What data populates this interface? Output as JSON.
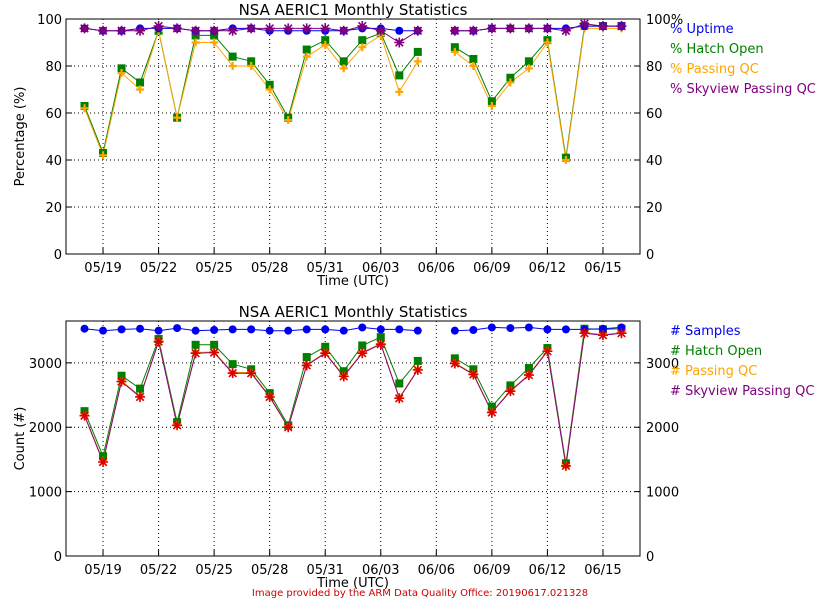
{
  "footer": "Image provided by the ARM Data Quality Office: 20190617.021328",
  "colors": {
    "blue": "#0000ee",
    "green": "#008000",
    "orange": "#ffa500",
    "purple": "#800080",
    "red": "#dd0000",
    "text": "#000000"
  },
  "chart_data": [
    {
      "type": "line",
      "title": "NSA AERIC1 Monthly Statistics",
      "xlabel": "Time (UTC)",
      "ylabel": "Percentage (%)",
      "ylim": [
        0,
        100
      ],
      "yticks": [
        0,
        20,
        40,
        60,
        80,
        100
      ],
      "yticks_right": [
        "0",
        "20",
        "40",
        "60",
        "80",
        "100%"
      ],
      "xlim": [
        17,
        48
      ],
      "xtick_positions": [
        19,
        22,
        25,
        28,
        31,
        34,
        37,
        40,
        43,
        46
      ],
      "xtick_labels": [
        "05/19",
        "05/22",
        "05/25",
        "05/28",
        "05/31",
        "06/03",
        "06/06",
        "06/09",
        "06/12",
        "06/15"
      ],
      "grid": true,
      "legend_position": "right",
      "x": [
        18,
        19,
        20,
        21,
        22,
        23,
        24,
        25,
        26,
        27,
        28,
        29,
        30,
        31,
        32,
        33,
        34,
        35,
        36,
        37,
        38,
        39,
        40,
        41,
        42,
        43,
        44,
        45,
        46,
        47
      ],
      "series": [
        {
          "name": "Uptime",
          "color": "#0000ee",
          "marker": "circle",
          "values": [
            96,
            95,
            95,
            96,
            96,
            96,
            95,
            95,
            96,
            96,
            95,
            95,
            95,
            95,
            95,
            96,
            96,
            95,
            95,
            null,
            95,
            95,
            96,
            96,
            96,
            96,
            96,
            97,
            97,
            97
          ]
        },
        {
          "name": "Hatch Open",
          "color": "#008000",
          "marker": "square",
          "values": [
            63,
            43,
            79,
            73,
            95,
            58,
            93,
            93,
            84,
            82,
            72,
            58,
            87,
            91,
            82,
            91,
            94,
            76,
            86,
            null,
            88,
            83,
            65,
            75,
            82,
            91,
            41,
            97,
            97,
            97
          ]
        },
        {
          "name": "Passing QC",
          "color": "#ffa500",
          "marker": "plus",
          "values": [
            62,
            42,
            77,
            70,
            95,
            58,
            90,
            90,
            80,
            80,
            70,
            57,
            84,
            89,
            79,
            88,
            93,
            69,
            82,
            null,
            86,
            80,
            63,
            73,
            79,
            90,
            40,
            96,
            96,
            96
          ]
        },
        {
          "name": "Skyview Passing QC",
          "color": "#800080",
          "marker": "star",
          "values": [
            96,
            95,
            95,
            95,
            97,
            96,
            95,
            95,
            95,
            96,
            96,
            96,
            96,
            96,
            95,
            97,
            95,
            90,
            95,
            null,
            95,
            95,
            96,
            96,
            96,
            96,
            95,
            98,
            97,
            97
          ]
        }
      ]
    },
    {
      "type": "line",
      "title": "NSA AERIC1 Monthly Statistics",
      "xlabel": "Time (UTC)",
      "ylabel": "Count (#)",
      "ylim": [
        0,
        3650
      ],
      "yticks": [
        0,
        1000,
        2000,
        3000
      ],
      "yticks_right": [
        "0",
        "1000",
        "2000",
        "3000"
      ],
      "xlim": [
        17,
        48
      ],
      "xtick_positions": [
        19,
        22,
        25,
        28,
        31,
        34,
        37,
        40,
        43,
        46
      ],
      "xtick_labels": [
        "05/19",
        "05/22",
        "05/25",
        "05/28",
        "05/31",
        "06/03",
        "06/06",
        "06/09",
        "06/12",
        "06/15"
      ],
      "grid": true,
      "legend_position": "right",
      "x": [
        18,
        19,
        20,
        21,
        22,
        23,
        24,
        25,
        26,
        27,
        28,
        29,
        30,
        31,
        32,
        33,
        34,
        35,
        36,
        37,
        38,
        39,
        40,
        41,
        42,
        43,
        44,
        45,
        46,
        47
      ],
      "series": [
        {
          "name": "Samples",
          "color": "#0000ee",
          "marker": "circle",
          "values": [
            3530,
            3500,
            3520,
            3530,
            3500,
            3540,
            3500,
            3510,
            3520,
            3520,
            3500,
            3500,
            3520,
            3520,
            3500,
            3550,
            3520,
            3520,
            3500,
            null,
            3500,
            3510,
            3550,
            3540,
            3550,
            3520,
            3520,
            3520,
            3530,
            3550
          ]
        },
        {
          "name": "Hatch Open",
          "color": "#008000",
          "marker": "square",
          "values": [
            2250,
            1550,
            2800,
            2600,
            3370,
            2080,
            3280,
            3280,
            2980,
            2900,
            2530,
            2030,
            3090,
            3250,
            2870,
            3270,
            3400,
            2680,
            3030,
            null,
            3070,
            2900,
            2320,
            2650,
            2920,
            3230,
            1440,
            3530,
            3520,
            3530
          ]
        },
        {
          "name": "Passing QC",
          "color": "#ffa500",
          "marker": "plus",
          "values": [
            2190,
            1480,
            2720,
            2480,
            3340,
            2040,
            3160,
            3170,
            2850,
            2850,
            2480,
            2010,
            2970,
            3160,
            2800,
            3160,
            3300,
            2460,
            2900,
            null,
            3000,
            2830,
            2240,
            2570,
            2820,
            3190,
            1410,
            3470,
            3440,
            3470
          ]
        },
        {
          "name": "Skyview Passing QC",
          "color": "#800080",
          "marker": "star",
          "values": [
            2180,
            1460,
            2710,
            2470,
            3330,
            2030,
            3150,
            3160,
            2840,
            2840,
            2470,
            2000,
            2960,
            3150,
            2790,
            3150,
            3290,
            2450,
            2890,
            null,
            2990,
            2820,
            2230,
            2560,
            2810,
            3180,
            1400,
            3460,
            3430,
            3460
          ]
        }
      ]
    }
  ]
}
